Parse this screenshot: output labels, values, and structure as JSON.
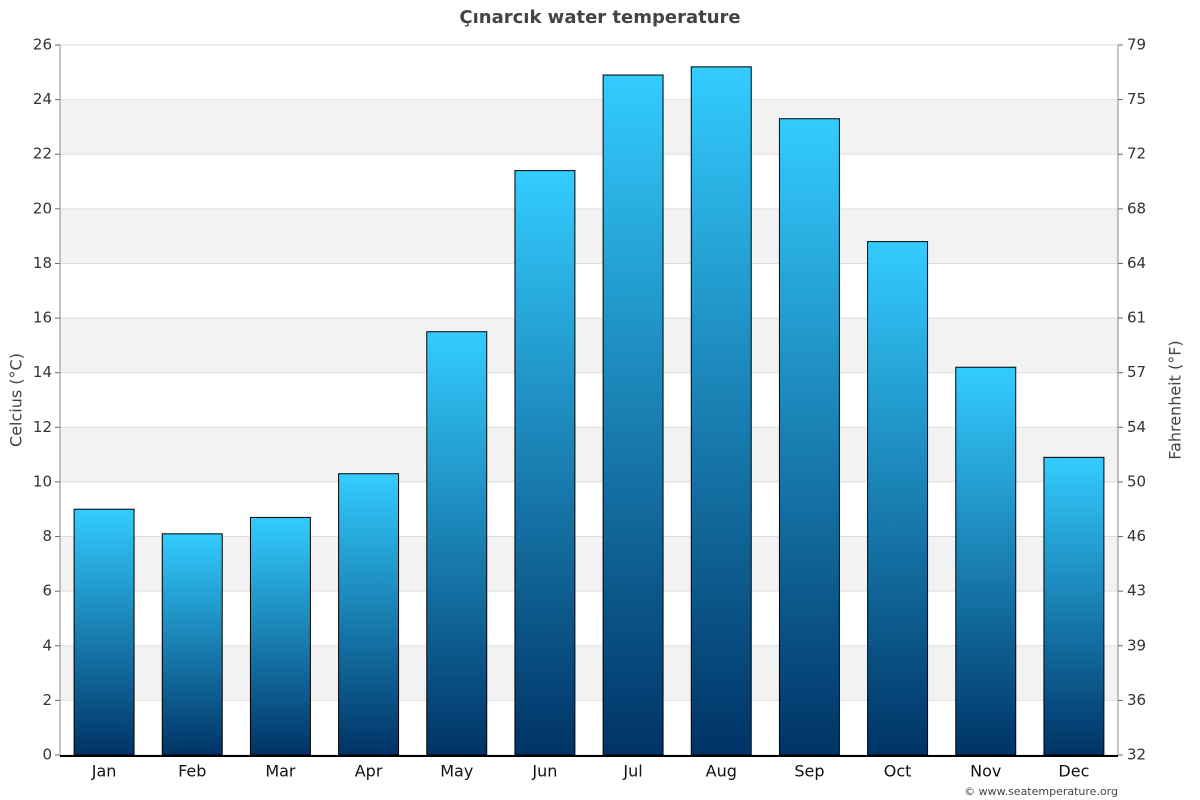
{
  "chart_data": {
    "type": "bar",
    "title": "Çınarcık water temperature",
    "y_label": "Celcius (°C)",
    "y2_label": "Fahrenheit (°F)",
    "source": "© www.seatemperature.org",
    "categories": [
      "Jan",
      "Feb",
      "Mar",
      "Apr",
      "May",
      "Jun",
      "Jul",
      "Aug",
      "Sep",
      "Oct",
      "Nov",
      "Dec"
    ],
    "values": [
      9.0,
      8.1,
      8.7,
      10.3,
      15.5,
      21.4,
      24.9,
      25.2,
      23.3,
      18.8,
      14.2,
      10.9
    ],
    "color": [
      "#33ccff",
      "#003366"
    ],
    "ylim": [
      0,
      26
    ],
    "yticks": [
      0,
      2,
      4,
      6,
      8,
      10,
      12,
      14,
      16,
      18,
      20,
      22,
      24,
      26
    ],
    "y2lim": [
      32,
      78.8
    ],
    "y2ticks": [
      32,
      {
        "value": 35.6,
        "label": "36"
      },
      {
        "value": 39.2,
        "label": "39"
      },
      {
        "value": 42.8,
        "label": "43"
      },
      {
        "value": 46.4,
        "label": "46"
      },
      50,
      {
        "value": 53.6,
        "label": "54"
      },
      {
        "value": 57.2,
        "label": "57"
      },
      {
        "value": 60.8,
        "label": "61"
      },
      {
        "value": 64.4,
        "label": "64"
      },
      68,
      {
        "value": 71.6,
        "label": "72"
      },
      {
        "value": 75.2,
        "label": "75"
      },
      {
        "value": 78.8,
        "label": "79"
      }
    ],
    "grid": true
  }
}
